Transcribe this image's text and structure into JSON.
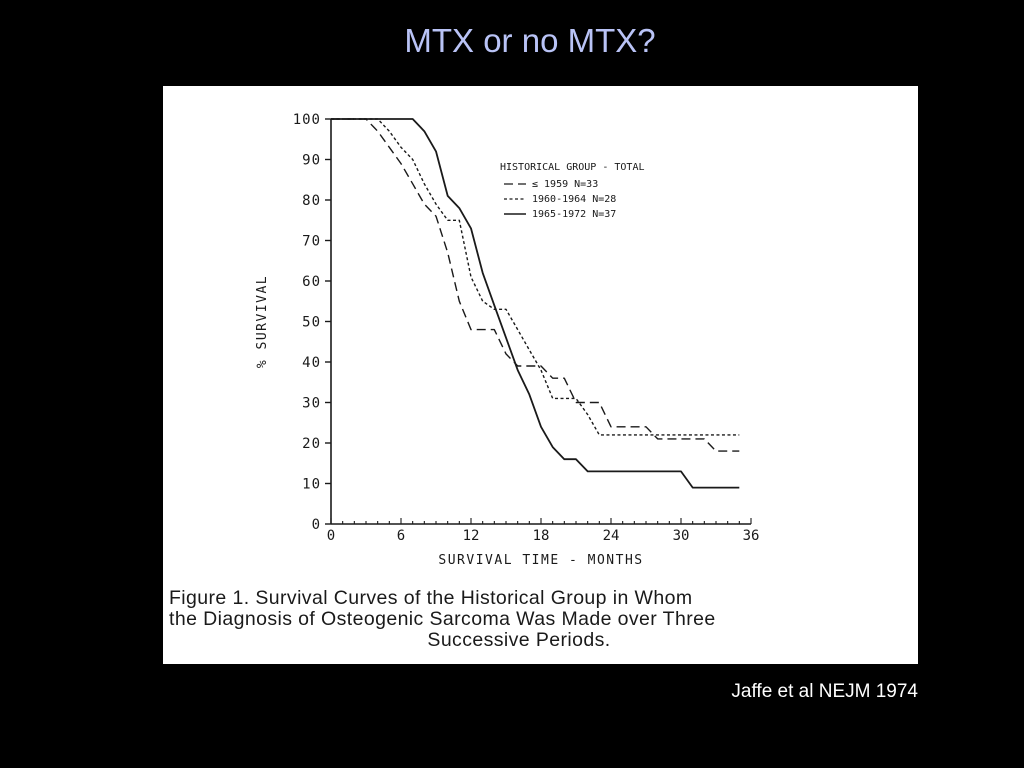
{
  "slide": {
    "title": "MTX or no MTX?",
    "citation": "Jaffe et al NEJM 1974"
  },
  "caption": {
    "line1": "Figure 1. Survival Curves of the Historical Group in Whom",
    "line2": "the Diagnosis of Osteogenic Sarcoma Was Made over Three",
    "line3": "Successive Periods."
  },
  "colors": {
    "background": "#000000",
    "title": "#b9c3f6",
    "figure_bg": "#ffffff",
    "ink": "#1a1a1a"
  },
  "chart_data": {
    "type": "line",
    "xlabel": "SURVIVAL TIME - MONTHS",
    "ylabel": "% SURVIVAL",
    "xlim": [
      0,
      36
    ],
    "ylim": [
      0,
      100
    ],
    "xticks": [
      0,
      6,
      12,
      18,
      24,
      30,
      36
    ],
    "yticks": [
      0,
      10,
      20,
      30,
      40,
      50,
      60,
      70,
      80,
      90,
      100
    ],
    "grid": false,
    "legend_title": "HISTORICAL GROUP - TOTAL",
    "legend_placement": "upper-right",
    "series": [
      {
        "name": "≤ 1959  N=33",
        "style": "dashed",
        "points": [
          [
            0,
            100
          ],
          [
            3,
            100
          ],
          [
            4,
            97
          ],
          [
            5,
            93
          ],
          [
            6,
            89
          ],
          [
            7,
            84
          ],
          [
            8,
            79
          ],
          [
            9,
            76
          ],
          [
            10,
            67
          ],
          [
            11,
            55
          ],
          [
            12,
            48
          ],
          [
            13,
            48
          ],
          [
            14,
            48
          ],
          [
            15,
            42
          ],
          [
            16,
            39
          ],
          [
            18,
            39
          ],
          [
            19,
            36
          ],
          [
            20,
            36
          ],
          [
            21,
            30
          ],
          [
            23,
            30
          ],
          [
            24,
            24
          ],
          [
            27,
            24
          ],
          [
            28,
            21
          ],
          [
            32,
            21
          ],
          [
            33,
            18
          ],
          [
            35,
            18
          ]
        ]
      },
      {
        "name": "1960-1964  N=28",
        "style": "dotted",
        "points": [
          [
            0,
            100
          ],
          [
            4,
            100
          ],
          [
            5,
            97
          ],
          [
            6,
            93
          ],
          [
            7,
            90
          ],
          [
            8,
            84
          ],
          [
            9,
            79
          ],
          [
            10,
            75
          ],
          [
            11,
            75
          ],
          [
            12,
            61
          ],
          [
            13,
            55
          ],
          [
            14,
            53
          ],
          [
            15,
            53
          ],
          [
            16,
            48
          ],
          [
            17,
            43
          ],
          [
            18,
            38
          ],
          [
            19,
            31
          ],
          [
            21,
            31
          ],
          [
            22,
            27
          ],
          [
            23,
            22
          ],
          [
            35,
            22
          ]
        ]
      },
      {
        "name": "1965-1972  N=37",
        "style": "solid",
        "points": [
          [
            0,
            100
          ],
          [
            7,
            100
          ],
          [
            8,
            97
          ],
          [
            9,
            92
          ],
          [
            10,
            81
          ],
          [
            11,
            78
          ],
          [
            12,
            73
          ],
          [
            13,
            62
          ],
          [
            14,
            54
          ],
          [
            15,
            46
          ],
          [
            16,
            38
          ],
          [
            17,
            32
          ],
          [
            18,
            24
          ],
          [
            19,
            19
          ],
          [
            20,
            16
          ],
          [
            21,
            16
          ],
          [
            22,
            13
          ],
          [
            30,
            13
          ],
          [
            31,
            9
          ],
          [
            35,
            9
          ]
        ]
      }
    ]
  }
}
